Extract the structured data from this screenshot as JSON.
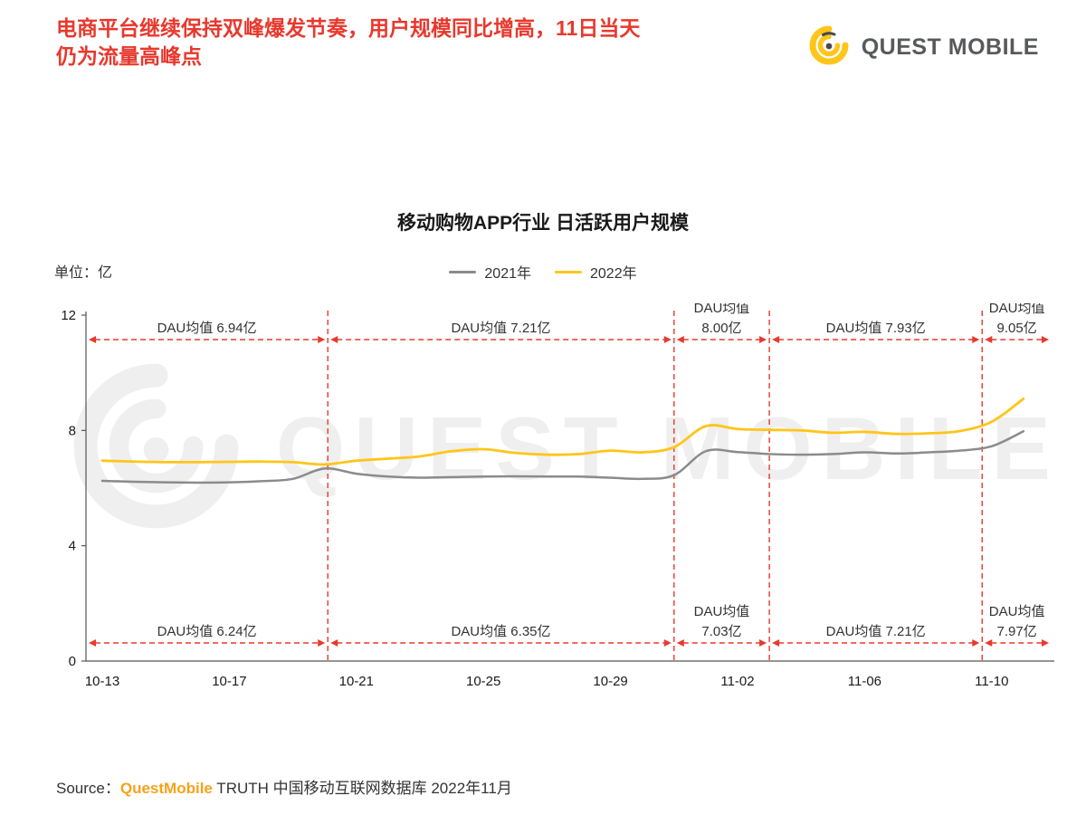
{
  "header": {
    "headline_line1": "电商平台继续保持双峰爆发节奏，用户规模同比增高，11日当天",
    "headline_line2": "仍为流量高峰点",
    "logo_text": "QUEST MOBILE"
  },
  "watermark": {
    "text": "QUEST MOBILE"
  },
  "source": {
    "prefix": "Source：",
    "brand": "QuestMobile",
    "suffix": " TRUTH 中国移动互联网数据库 2022年11月"
  },
  "chart_data": {
    "type": "line",
    "title": "移动购物APP行业 日活跃用户规模",
    "unit_label": "单位：亿",
    "ylim": [
      0,
      12
    ],
    "yticks": [
      0,
      4,
      8,
      12
    ],
    "grid": false,
    "legend_position": "top-center",
    "x_days": [
      "10-13",
      "10-14",
      "10-15",
      "10-16",
      "10-17",
      "10-18",
      "10-19",
      "10-20",
      "10-21",
      "10-22",
      "10-23",
      "10-24",
      "10-25",
      "10-26",
      "10-27",
      "10-28",
      "10-29",
      "10-30",
      "10-31",
      "11-01",
      "11-02",
      "11-03",
      "11-04",
      "11-05",
      "11-06",
      "11-07",
      "11-08",
      "11-09",
      "11-10",
      "11-11"
    ],
    "x_tick_labels": [
      "10-13",
      "10-17",
      "10-21",
      "10-25",
      "10-29",
      "11-02",
      "11-06",
      "11-10"
    ],
    "x_tick_day_index": [
      0,
      4,
      8,
      12,
      16,
      20,
      24,
      28
    ],
    "series": [
      {
        "name": "2021年",
        "color": "#8b8b8b",
        "values": [
          6.25,
          6.22,
          6.2,
          6.19,
          6.2,
          6.24,
          6.32,
          6.68,
          6.5,
          6.4,
          6.36,
          6.38,
          6.4,
          6.41,
          6.4,
          6.4,
          6.36,
          6.32,
          6.45,
          7.28,
          7.25,
          7.18,
          7.16,
          7.18,
          7.24,
          7.2,
          7.24,
          7.3,
          7.45,
          7.97
        ]
      },
      {
        "name": "2022年",
        "color": "#ffc51a",
        "values": [
          6.95,
          6.92,
          6.9,
          6.9,
          6.91,
          6.92,
          6.9,
          6.82,
          6.95,
          7.02,
          7.1,
          7.28,
          7.35,
          7.22,
          7.16,
          7.18,
          7.3,
          7.24,
          7.42,
          8.15,
          8.05,
          8.02,
          8.0,
          7.92,
          7.95,
          7.88,
          7.9,
          7.98,
          8.3,
          9.1
        ]
      }
    ],
    "segment_dividers_day": [
      7.1,
      18,
      21,
      27.7
    ],
    "segment_annotations": {
      "top_row_series": "2022年",
      "bottom_row_series": "2021年",
      "top": [
        {
          "label": "DAU均值",
          "value": "6.94亿",
          "stacked": false
        },
        {
          "label": "DAU均值",
          "value": "7.21亿",
          "stacked": false
        },
        {
          "label": "DAU均值",
          "value": "8.00亿",
          "stacked": true
        },
        {
          "label": "DAU均值",
          "value": "7.93亿",
          "stacked": false
        },
        {
          "label": "DAU均值",
          "value": "9.05亿",
          "stacked": true
        }
      ],
      "bottom": [
        {
          "label": "DAU均值",
          "value": "6.24亿",
          "stacked": false
        },
        {
          "label": "DAU均值",
          "value": "6.35亿",
          "stacked": false
        },
        {
          "label": "DAU均值",
          "value": "7.03亿",
          "stacked": true
        },
        {
          "label": "DAU均值",
          "value": "7.21亿",
          "stacked": false
        },
        {
          "label": "DAU均值",
          "value": "7.97亿",
          "stacked": true
        }
      ]
    },
    "accent_color": "#e8392e"
  }
}
